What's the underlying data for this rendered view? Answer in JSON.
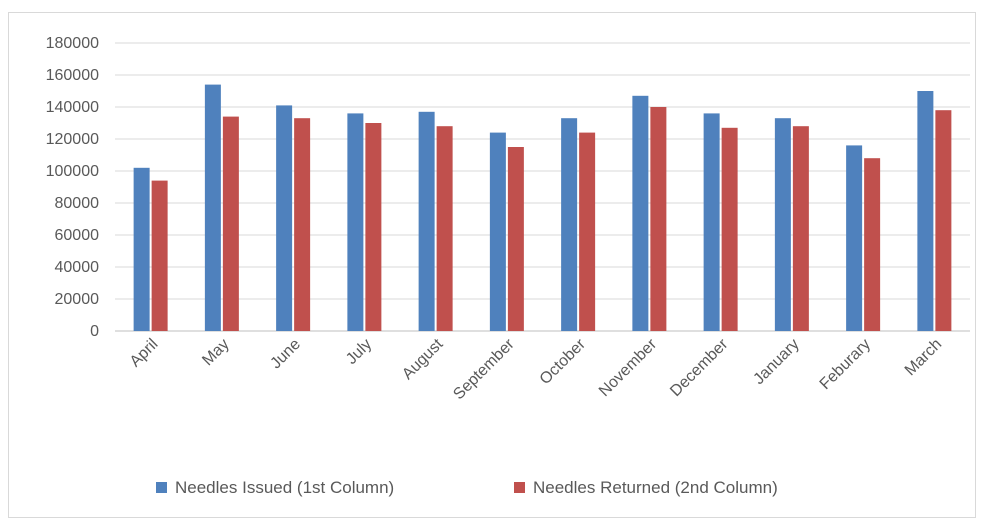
{
  "chart_data": {
    "type": "bar",
    "categories": [
      "April",
      "May",
      "June",
      "July",
      "August",
      "September",
      "October",
      "November",
      "December",
      "January",
      "Feburary",
      "March"
    ],
    "series": [
      {
        "name": "Needles Issued (1st Column)",
        "color": "#4f81bd",
        "values": [
          102000,
          154000,
          141000,
          136000,
          137000,
          124000,
          133000,
          147000,
          136000,
          133000,
          116000,
          150000
        ]
      },
      {
        "name": "Needles Returned (2nd Column)",
        "color": "#c0504d",
        "values": [
          94000,
          134000,
          133000,
          130000,
          128000,
          115000,
          124000,
          140000,
          127000,
          128000,
          108000,
          138000
        ]
      }
    ],
    "yticks": [
      "0",
      "20000",
      "40000",
      "60000",
      "80000",
      "100000",
      "120000",
      "140000",
      "160000",
      "180000"
    ],
    "ylim": [
      0,
      180000
    ],
    "grid": true,
    "legend_position": "bottom"
  }
}
